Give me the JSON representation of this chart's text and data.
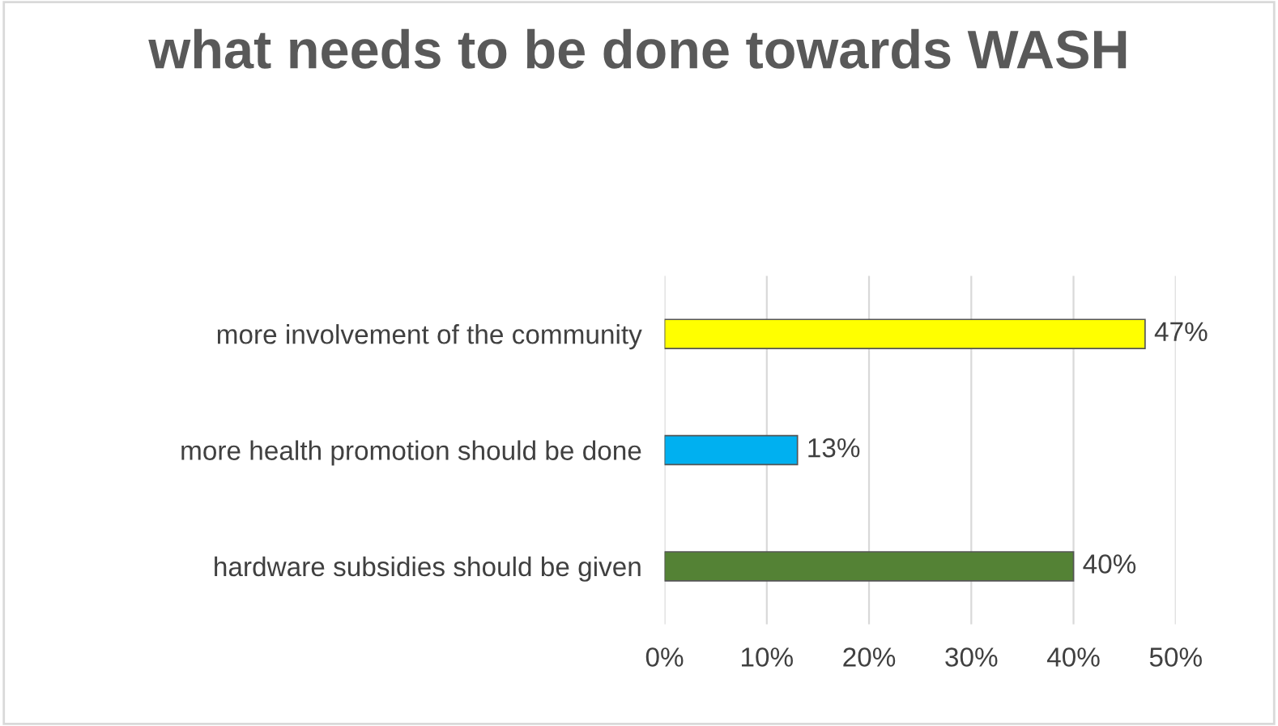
{
  "chart_data": {
    "type": "bar",
    "orientation": "horizontal",
    "title": "what needs to be done towards WASH",
    "categories": [
      "more involvement of the community",
      "more health promotion should be done",
      "hardware subsidies should be given"
    ],
    "values": [
      47,
      13,
      40
    ],
    "colors": [
      "#ffff00",
      "#00b0f0",
      "#548235"
    ],
    "value_labels": [
      "47%",
      "13%",
      "40%"
    ],
    "xlim": [
      0,
      50
    ],
    "xticks": [
      {
        "value": 0,
        "label": "0%"
      },
      {
        "value": 10,
        "label": "10%"
      },
      {
        "value": 20,
        "label": "20%"
      },
      {
        "value": 30,
        "label": "30%"
      },
      {
        "value": 40,
        "label": "40%"
      },
      {
        "value": 50,
        "label": "50%"
      }
    ],
    "grid": "x"
  }
}
